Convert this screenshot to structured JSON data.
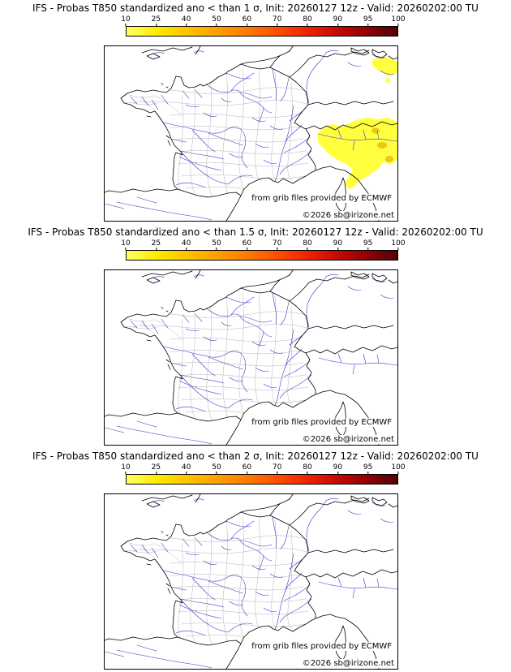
{
  "panels": [
    {
      "title": "IFS - Probas T850  standardized ano < than 1 σ, Init: 20260127 12z - Valid: 20260202:00 TU",
      "threshold_sigma": "1",
      "shading": "yellow patches (10–25%) over northwest Italy / Ligurian area and upper-right corner"
    },
    {
      "title": "IFS - Probas T850  standardized ano < than 1.5 σ, Init: 20260127 12z - Valid: 20260202:00 TU",
      "threshold_sigma": "1.5",
      "shading": "none"
    },
    {
      "title": "IFS - Probas T850  standardized ano < than 2 σ, Init: 20260127 12z - Valid: 20260202:00 TU",
      "threshold_sigma": "2",
      "shading": "none"
    }
  ],
  "colorbar": {
    "ticks": [
      "10",
      "25",
      "40",
      "50",
      "60",
      "70",
      "80",
      "90",
      "95",
      "100"
    ],
    "colors": [
      "#ffff66",
      "#ffec00",
      "#ffc400",
      "#ffa000",
      "#ff7b00",
      "#ff4e00",
      "#ef2400",
      "#c60b00",
      "#8f0005",
      "#550008"
    ]
  },
  "map": {
    "credit": "from grib files provided by ECMWF",
    "copyright": "©2026 sb@irizone.net",
    "land_color": "#ffffff",
    "river_color": "#3939cf",
    "border_color": "#000000",
    "department_color": "#b3b3b3"
  }
}
